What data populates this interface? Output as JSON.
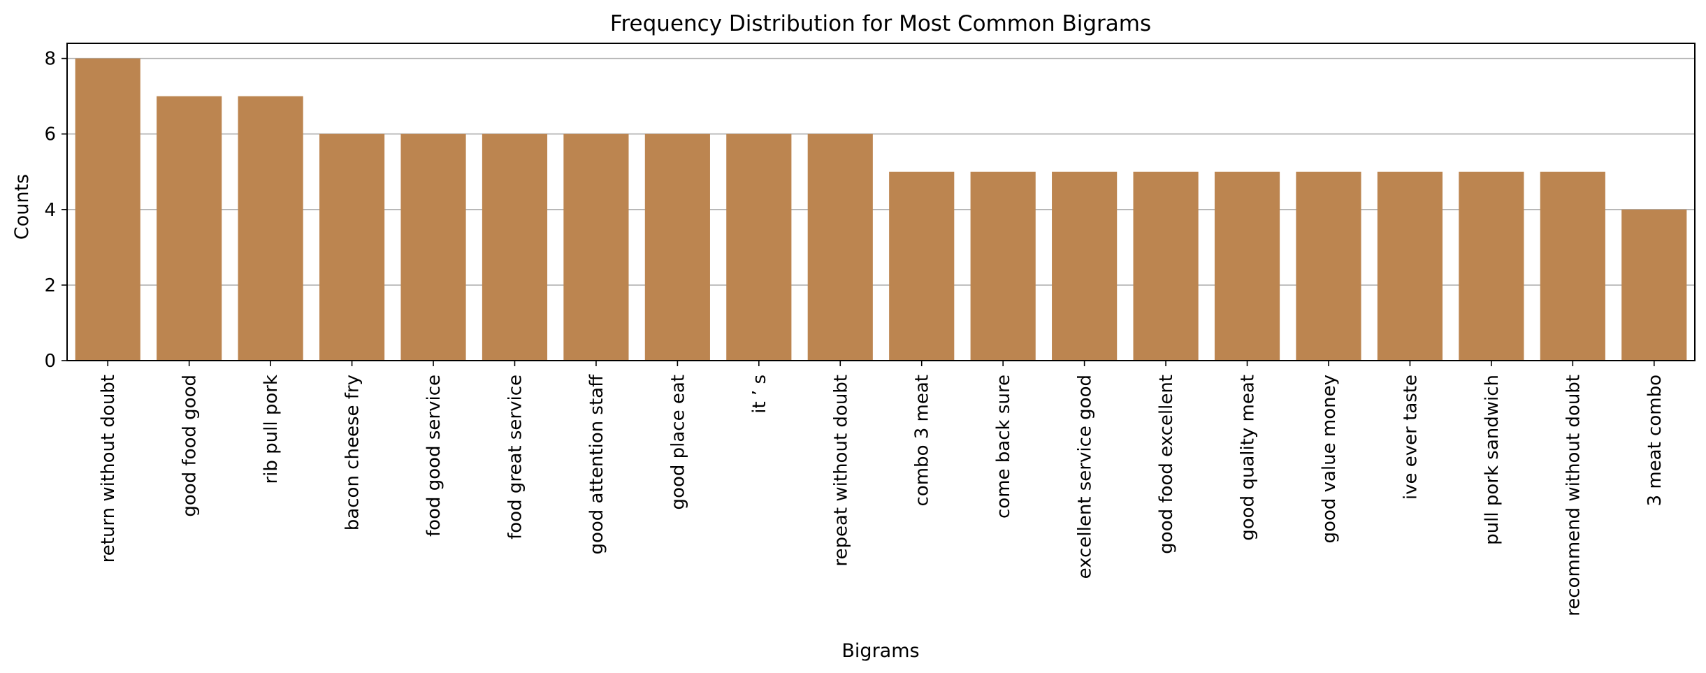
{
  "chart_data": {
    "type": "bar",
    "title": "Frequency Distribution for Most Common Bigrams",
    "xlabel": "Bigrams",
    "ylabel": "Counts",
    "categories": [
      "return without doubt",
      "good food good",
      "rib pull pork",
      "bacon cheese fry",
      "food good service",
      "food great service",
      "good attention staff",
      "good place eat",
      "it ’ s",
      "repeat without doubt",
      "combo 3 meat",
      "come back sure",
      "excellent service good",
      "good food excellent",
      "good quality meat",
      "good value money",
      "ive ever taste",
      "pull pork sandwich",
      "recommend without doubt",
      "3 meat combo"
    ],
    "values": [
      8,
      7,
      7,
      6,
      6,
      6,
      6,
      6,
      6,
      6,
      5,
      5,
      5,
      5,
      5,
      5,
      5,
      5,
      5,
      4
    ],
    "ylim": [
      0,
      8.4
    ],
    "yticks": [
      0,
      2,
      4,
      6,
      8
    ],
    "grid": "y",
    "bar_color": "#bc8550",
    "grid_color": "#b0b0b0",
    "axis_color": "#000000"
  }
}
